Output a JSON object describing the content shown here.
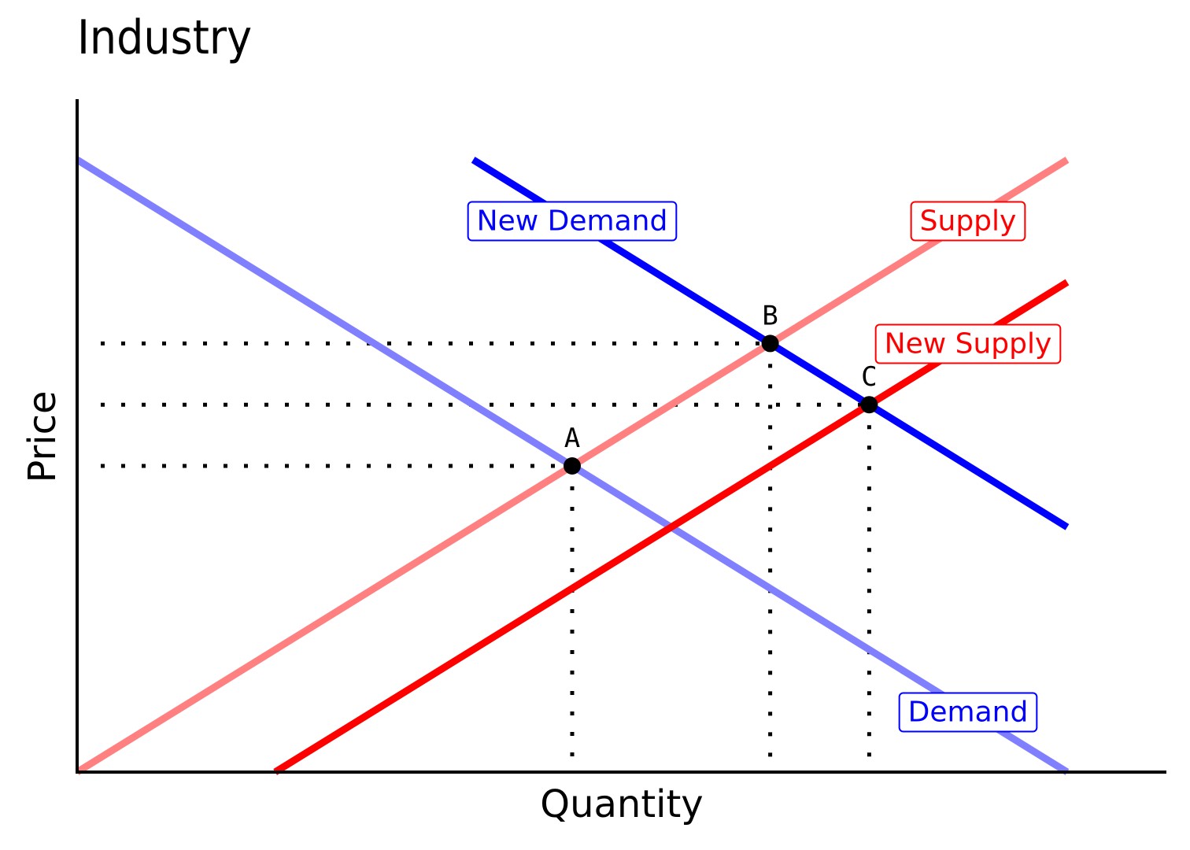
{
  "chart_data": {
    "type": "line",
    "title": "Industry",
    "xlabel": "Quantity",
    "ylabel": "Price",
    "xlim": [
      0,
      11
    ],
    "ylim": [
      0,
      10
    ],
    "grid": false,
    "ticks": "none",
    "series": [
      {
        "name": "Demand",
        "color": "#8080ff",
        "points": [
          [
            0,
            10
          ],
          [
            10,
            0
          ]
        ]
      },
      {
        "name": "Supply",
        "color": "#ff8080",
        "points": [
          [
            0,
            0
          ],
          [
            10,
            10
          ]
        ]
      },
      {
        "name": "New Demand",
        "color": "#0000ff",
        "points": [
          [
            4,
            10
          ],
          [
            10,
            4
          ]
        ]
      },
      {
        "name": "New Supply",
        "color": "#ff0000",
        "points": [
          [
            2,
            0
          ],
          [
            10,
            8
          ]
        ]
      }
    ],
    "points": [
      {
        "label": "A",
        "x": 5,
        "y": 5
      },
      {
        "label": "B",
        "x": 7,
        "y": 7
      },
      {
        "label": "C",
        "x": 8,
        "y": 6
      }
    ]
  }
}
